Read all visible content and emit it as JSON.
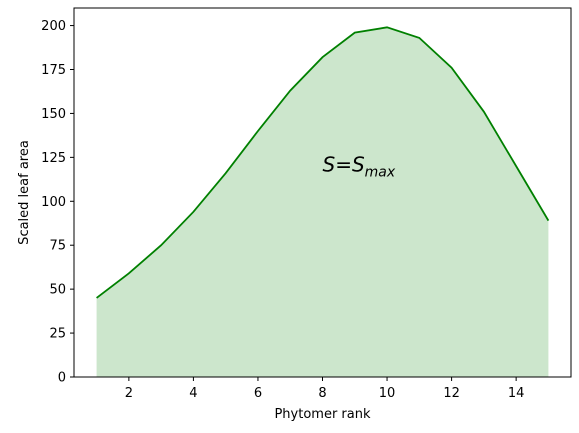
{
  "chart_data": {
    "type": "area",
    "x": [
      1,
      2,
      3,
      4,
      5,
      6,
      7,
      8,
      9,
      10,
      11,
      12,
      13,
      14,
      15
    ],
    "series": [
      {
        "values": [
          45,
          59,
          75,
          94,
          116,
          140,
          163,
          182,
          196,
          199,
          193,
          176,
          151,
          120,
          89
        ],
        "color": "#008000",
        "fill_color": "#008000",
        "fill_opacity": 0.2
      }
    ],
    "xlabel": "Phytomer rank",
    "ylabel": "Scaled leaf area",
    "xlim": [
      0.3,
      15.7
    ],
    "ylim": [
      0,
      210
    ],
    "xticks": [
      2,
      4,
      6,
      8,
      10,
      12,
      14
    ],
    "yticks": [
      0,
      25,
      50,
      75,
      100,
      125,
      150,
      175,
      200
    ],
    "grid": false,
    "annotation": {
      "main": "S",
      "equals": "=",
      "base": "S",
      "subscript": "max",
      "at_x": 8.0,
      "at_y": 121
    }
  }
}
